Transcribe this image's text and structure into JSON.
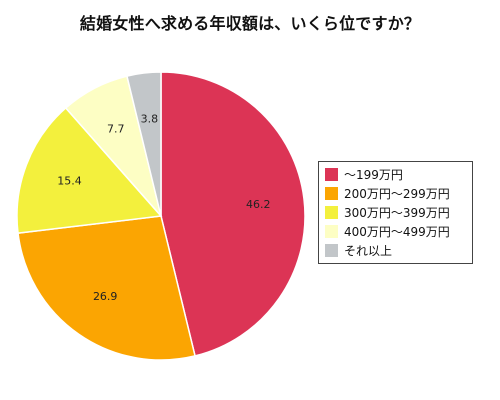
{
  "chart_data": {
    "type": "pie",
    "title": "結婚女性へ求める年収額は、いくら位ですか？",
    "start_angle_deg": 0,
    "direction": "clockwise",
    "legend_position": "right",
    "slices": [
      {
        "label": "〜199万円",
        "value": 46.2,
        "color": "#dc3455"
      },
      {
        "label": "200万円〜299万円",
        "value": 26.9,
        "color": "#fba502"
      },
      {
        "label": "300万円〜399万円",
        "value": 15.4,
        "color": "#f3f03d"
      },
      {
        "label": "400万円〜499万円",
        "value": 7.7,
        "color": "#fdfec4"
      },
      {
        "label": "それ以上",
        "value": 3.8,
        "color": "#c2c6c9"
      }
    ]
  }
}
